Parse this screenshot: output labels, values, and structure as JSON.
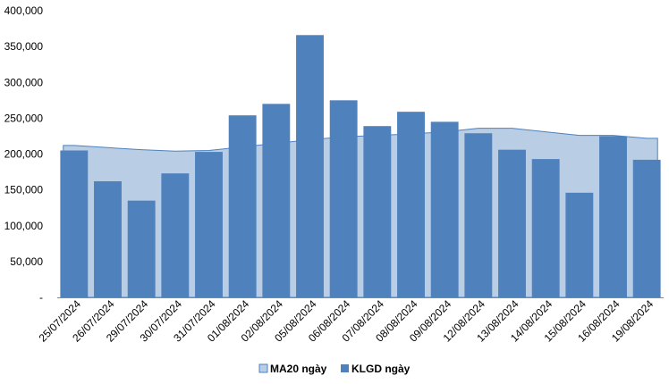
{
  "chart_data": {
    "type": "bar",
    "categories": [
      "25/07/2024",
      "26/07/2024",
      "29/07/2024",
      "30/07/2024",
      "31/07/2024",
      "01/08/2024",
      "02/08/2024",
      "05/08/2024",
      "06/08/2024",
      "07/08/2024",
      "08/08/2024",
      "09/08/2024",
      "12/08/2024",
      "13/08/2024",
      "14/08/2024",
      "15/08/2024",
      "16/08/2024",
      "19/08/2024"
    ],
    "y_tick_labels": [
      "-",
      "50,000",
      "100,000",
      "150,000",
      "200,000",
      "250,000",
      "300,000",
      "350,000",
      "400,000"
    ],
    "ylim": [
      0,
      400000
    ],
    "y_step": 50000,
    "grid": false,
    "legend_position": "bottom",
    "series": [
      {
        "name": "MA20 ngày",
        "type": "area",
        "color": "#b9cde5",
        "stroke": "#4f81bd",
        "values": [
          212000,
          209000,
          206000,
          204000,
          205000,
          210000,
          215000,
          220000,
          224000,
          226000,
          228000,
          231000,
          236000,
          236000,
          231000,
          226000,
          226000,
          222000
        ]
      },
      {
        "name": "KLGD ngày",
        "type": "bar",
        "color": "#4f81bd",
        "values": [
          205000,
          162000,
          135000,
          173000,
          203000,
          254000,
          270000,
          366000,
          275000,
          239000,
          259000,
          245000,
          229000,
          206000,
          193000,
          146000,
          225000,
          192000
        ]
      }
    ]
  }
}
